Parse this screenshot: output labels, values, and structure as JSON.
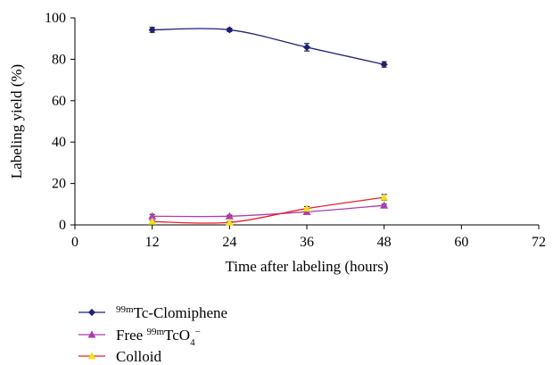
{
  "chart_data": {
    "type": "line",
    "xlabel": "Time after labeling (hours)",
    "ylabel": "Labeling yield (%)",
    "xlim": [
      0,
      72
    ],
    "ylim": [
      0,
      100
    ],
    "xticks": [
      "0",
      "12",
      "24",
      "36",
      "48",
      "60",
      "72"
    ],
    "yticks": [
      "0",
      "20",
      "40",
      "60",
      "80",
      "100"
    ],
    "grid": false,
    "legend_position": "bottom",
    "x": [
      12,
      24,
      36,
      48
    ],
    "series": [
      {
        "name": "99mTc-Clomiphene",
        "legend_sup": "99m",
        "legend_main": "Tc-Clomiphene",
        "values": [
          94.2,
          94.2,
          85.8,
          77.5
        ],
        "errors": [
          1.2,
          0.8,
          1.8,
          1.3
        ],
        "color": "#1f1f7a",
        "marker": "diamond",
        "marker_color": "#1f1f7a"
      },
      {
        "name": "Free 99mTcO4−",
        "legend_pre": "Free ",
        "legend_sup": "99m",
        "legend_main": "TcO",
        "legend_sub": "4",
        "legend_sup2": "−",
        "values": [
          4.2,
          4.2,
          6.3,
          9.4
        ],
        "errors": [
          0.9,
          0.5,
          0.7,
          0.6
        ],
        "color": "#b03bb0",
        "marker": "triangle",
        "marker_color": "#b03bb0"
      },
      {
        "name": "Colloid",
        "legend_main": "Colloid",
        "values": [
          1.6,
          1.2,
          7.9,
          13.3
        ],
        "errors": [
          0.6,
          0.4,
          1.0,
          1.4
        ],
        "color": "#e8202a",
        "marker": "triangle",
        "marker_color": "#f2e21b"
      }
    ]
  }
}
